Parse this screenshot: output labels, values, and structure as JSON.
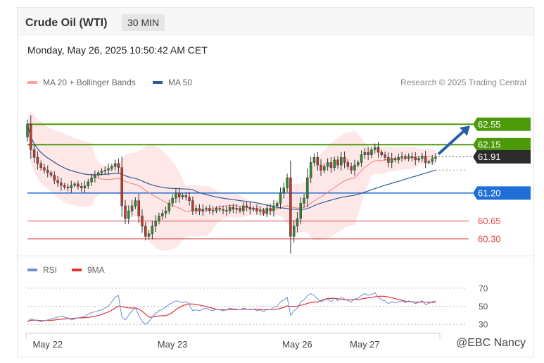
{
  "header": {
    "title": "Crude Oil (WTI)",
    "timeframe": "30 MIN"
  },
  "datetime": "Monday, May 26, 2025 10:50:42 AM CET",
  "credit": "Research © 2025 Trading Central",
  "watermark": "@EBC Nancy",
  "legend": {
    "ma20": {
      "label": "MA 20 + Bollinger Bands",
      "color": "#f5a3a3"
    },
    "ma50": {
      "label": "MA 50",
      "color": "#2e5c9e"
    },
    "rsi": {
      "label": "RSI",
      "color": "#6b8fd6"
    },
    "rsi_ma": {
      "label": "9MA",
      "color": "#e03030"
    }
  },
  "chart_data": [
    {
      "type": "candlestick",
      "ylim": [
        60.05,
        62.9
      ],
      "x_axis_labels": [
        {
          "label": "May 22",
          "index": 6
        },
        {
          "label": "May 23",
          "index": 43
        },
        {
          "label": "May 26",
          "index": 80
        },
        {
          "label": "May 27",
          "index": 100
        }
      ],
      "levels": [
        {
          "value": 62.55,
          "label": "62.55",
          "type": "resistance",
          "color": "#4c9a0a"
        },
        {
          "value": 62.15,
          "label": "62.15",
          "type": "resistance",
          "color": "#4c9a0a"
        },
        {
          "value": 61.91,
          "label": "61.91",
          "type": "last",
          "color": "#2b2b2b"
        },
        {
          "value": 61.2,
          "label": "61.20",
          "type": "pivot",
          "color": "#1f6fd6"
        },
        {
          "value": 60.65,
          "label": "60.65",
          "type": "support",
          "color": "#e04848"
        },
        {
          "value": 60.3,
          "label": "60.30",
          "type": "support",
          "color": "#e04848"
        }
      ],
      "closes": [
        62.55,
        62.05,
        61.9,
        61.78,
        61.7,
        61.65,
        61.6,
        61.55,
        61.45,
        61.4,
        61.35,
        61.32,
        61.3,
        61.35,
        61.38,
        61.33,
        61.3,
        61.34,
        61.42,
        61.5,
        61.55,
        61.6,
        61.63,
        61.65,
        61.68,
        61.72,
        61.78,
        61.7,
        60.95,
        60.7,
        60.85,
        60.95,
        61.05,
        60.75,
        60.55,
        60.35,
        60.4,
        60.55,
        60.65,
        60.75,
        60.8,
        60.85,
        61.0,
        61.1,
        61.2,
        61.12,
        61.15,
        61.12,
        61.05,
        60.85,
        60.9,
        60.85,
        60.88,
        60.9,
        60.86,
        60.85,
        60.9,
        60.88,
        60.86,
        60.85,
        60.92,
        60.88,
        60.9,
        60.85,
        60.95,
        60.92,
        60.88,
        60.9,
        60.85,
        60.86,
        60.8,
        60.9,
        60.85,
        60.95,
        61.0,
        61.2,
        61.3,
        61.5,
        60.35,
        60.55,
        60.7,
        61.0,
        61.1,
        61.5,
        61.8,
        61.9,
        61.75,
        61.65,
        61.72,
        61.8,
        61.7,
        61.85,
        61.75,
        61.9,
        61.8,
        61.72,
        61.65,
        61.75,
        61.8,
        61.95,
        62.0,
        61.95,
        62.05,
        62.1,
        62.0,
        61.95,
        61.9,
        61.8,
        61.88,
        61.85,
        61.9,
        61.92,
        61.88,
        61.92,
        61.9,
        61.85,
        61.88,
        61.92,
        61.8,
        61.82,
        61.88,
        61.91
      ]
    },
    {
      "type": "line",
      "name": "RSI",
      "ylim": [
        20,
        80
      ],
      "y_ticks": [
        70,
        50,
        30
      ],
      "rsi_values": [
        33,
        36,
        35,
        34,
        33,
        34,
        35,
        36,
        37,
        38,
        39,
        38,
        37,
        35,
        36,
        37,
        38,
        39,
        41,
        43,
        44,
        45,
        46,
        48,
        50,
        55,
        60,
        62,
        38,
        35,
        40,
        45,
        48,
        40,
        33,
        30,
        33,
        38,
        42,
        45,
        47,
        49,
        52,
        54,
        56,
        55,
        54,
        55,
        52,
        45,
        46,
        45,
        47,
        48,
        46,
        45,
        47,
        46,
        45,
        46,
        48,
        47,
        47,
        46,
        48,
        47,
        46,
        47,
        45,
        46,
        44,
        47,
        46,
        49,
        50,
        55,
        57,
        60,
        40,
        45,
        48,
        55,
        57,
        62,
        64,
        62,
        58,
        55,
        57,
        58,
        55,
        59,
        56,
        60,
        58,
        56,
        55,
        58,
        59,
        62,
        64,
        62,
        63,
        65,
        60,
        57,
        56,
        53,
        55,
        54,
        55,
        56,
        54,
        56,
        55,
        53,
        54,
        56,
        52,
        53,
        55,
        56
      ]
    }
  ]
}
